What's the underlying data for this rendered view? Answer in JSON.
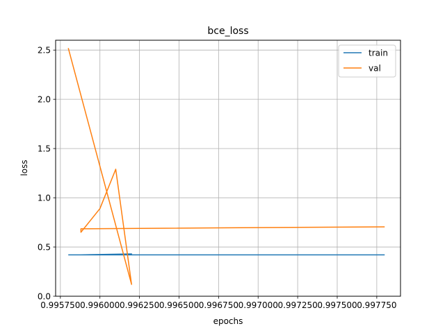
{
  "chart_data": {
    "type": "line",
    "title": "bce_loss",
    "xlabel": "epochs",
    "ylabel": "loss",
    "xlim": [
      0.99572,
      0.9979
    ],
    "ylim": [
      0.0,
      2.6
    ],
    "grid": true,
    "legend_position": "top-right",
    "x_ticks": [
      0.99575,
      0.996,
      0.99625,
      0.9965,
      0.99675,
      0.997,
      0.99725,
      0.9975,
      0.99775
    ],
    "x_tick_labels": [
      "0.995750",
      "0.996000",
      "0.996250",
      "0.996500",
      "0.996750",
      "0.997000",
      "0.997250",
      "0.997500",
      "0.997750"
    ],
    "y_ticks": [
      0.0,
      0.5,
      1.0,
      1.5,
      2.0,
      2.5
    ],
    "y_tick_labels": [
      "0.0",
      "0.5",
      "1.0",
      "1.5",
      "2.0",
      "2.5"
    ],
    "series": [
      {
        "name": "train",
        "color": "#1f77b4",
        "x": [
          0.9958,
          0.99588,
          0.9962,
          0.99588,
          0.9962,
          0.9978
        ],
        "y": [
          0.42,
          0.42,
          0.43,
          0.42,
          0.42,
          0.42
        ]
      },
      {
        "name": "val",
        "color": "#ff7f0e",
        "x": [
          0.9958,
          0.9962,
          0.9961,
          0.996,
          0.99588,
          0.99588,
          0.9978
        ],
        "y": [
          2.52,
          0.12,
          1.29,
          0.89,
          0.65,
          0.685,
          0.705
        ]
      }
    ]
  }
}
